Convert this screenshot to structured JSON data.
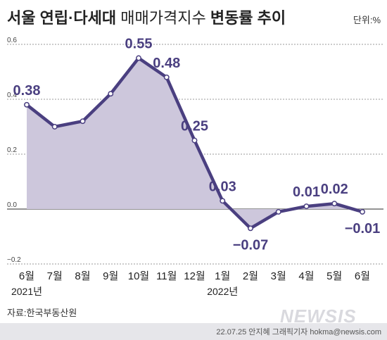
{
  "header": {
    "title_bold_1": "서울 연립·다세대",
    "title_light": "매매가격지수",
    "title_bold_2": "변동률 추이",
    "unit": "단위:%"
  },
  "footer": {
    "source": "자료:한국부동산원",
    "credit": "22.07.25 안지혜 그래픽기자 hokma@newsis.com",
    "watermark": "NEWSIS"
  },
  "chart_data": {
    "type": "area",
    "x": [
      "6월",
      "7월",
      "8월",
      "9월",
      "10월",
      "11월",
      "12월",
      "1월",
      "2월",
      "3월",
      "4월",
      "5월",
      "6월"
    ],
    "values": [
      0.38,
      0.3,
      0.32,
      0.42,
      0.55,
      0.48,
      0.25,
      0.03,
      -0.07,
      -0.01,
      0.01,
      0.02,
      -0.01
    ],
    "labels": [
      "0.38",
      "",
      "",
      "",
      "0.55",
      "0.48",
      "0.25",
      "0.03",
      "−0.07",
      "",
      "0.01",
      "0.02",
      "−0.01"
    ],
    "year_labels": [
      {
        "index": 0,
        "text": "2021년"
      },
      {
        "index": 7,
        "text": "2022년"
      }
    ],
    "y_ticks": [
      "0.6",
      "0.4",
      "0.2",
      "0.0",
      "−0.2"
    ],
    "ylim": [
      -0.2,
      0.6
    ],
    "grid": true,
    "colors": {
      "line": "#4a3f80",
      "fill": "#cdc7dc"
    }
  }
}
